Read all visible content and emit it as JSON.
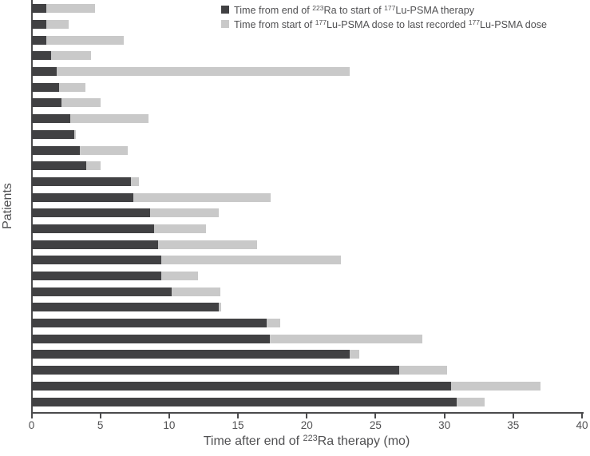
{
  "chart_data": {
    "type": "bar",
    "orientation": "horizontal",
    "stacked": true,
    "n_patients": 26,
    "title": "",
    "ylabel": "Patients",
    "xlabel": "Time after end of ²²³Ra therapy (mo)",
    "xlabel_parts": [
      {
        "text": "Time after end of "
      },
      {
        "text": "223",
        "sup": true
      },
      {
        "text": "Ra therapy (mo)"
      }
    ],
    "xlim": [
      0,
      40
    ],
    "xticks": [
      0,
      5,
      10,
      15,
      20,
      25,
      30,
      35,
      40
    ],
    "grid": false,
    "legend_position": "top-center",
    "colors": {
      "dark_bar": "#414143",
      "light_bar": "#c9c9c9",
      "axis": "#4b4b4d",
      "text": "#515153"
    },
    "series": [
      {
        "name": "Time from end of ²²³Ra to start of ¹⁷⁷Lu-PSMA therapy",
        "name_parts": [
          {
            "text": "Time from end of "
          },
          {
            "text": "223",
            "sup": true
          },
          {
            "text": "Ra to start of "
          },
          {
            "text": "177",
            "sup": true
          },
          {
            "text": "Lu-PSMA therapy"
          }
        ],
        "color": "#414143",
        "values": [
          1.1,
          1.1,
          1.1,
          1.4,
          1.8,
          2.0,
          2.2,
          2.8,
          3.1,
          3.5,
          4.0,
          7.2,
          7.4,
          8.6,
          8.9,
          9.2,
          9.4,
          9.4,
          10.2,
          13.6,
          17.1,
          17.3,
          23.1,
          26.7,
          30.5,
          30.9
        ]
      },
      {
        "name": "Time from start of ¹⁷⁷Lu-PSMA dose to last recorded ¹⁷⁷Lu-PSMA dose",
        "name_parts": [
          {
            "text": "Time from start of "
          },
          {
            "text": "177",
            "sup": true
          },
          {
            "text": "Lu-PSMA dose to last recorded "
          },
          {
            "text": "177",
            "sup": true
          },
          {
            "text": "Lu-PSMA dose"
          }
        ],
        "color": "#c9c9c9",
        "values": [
          3.5,
          1.6,
          5.6,
          2.9,
          21.3,
          1.9,
          2.8,
          5.7,
          0.1,
          3.5,
          1.0,
          0.6,
          10.0,
          5.0,
          3.8,
          7.2,
          13.1,
          2.7,
          3.5,
          0.2,
          1.0,
          11.1,
          0.7,
          3.5,
          6.5,
          2.0
        ]
      }
    ]
  }
}
